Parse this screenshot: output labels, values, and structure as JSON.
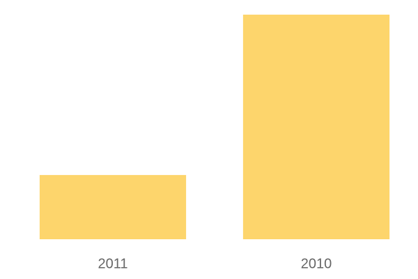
{
  "chart_data": {
    "type": "bar",
    "categories": [
      "2011",
      "2010"
    ],
    "values": [
      28.6,
      100
    ],
    "color": "#fdd56c",
    "ylim": [
      0,
      100
    ]
  }
}
